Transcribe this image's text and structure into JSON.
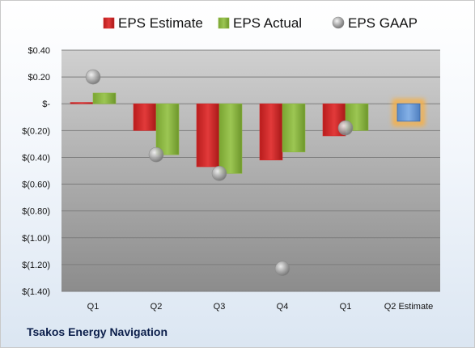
{
  "company": "Tsakos Energy Navigation",
  "chart_data": {
    "type": "bar",
    "categories": [
      "Q1",
      "Q2",
      "Q3",
      "Q4",
      "Q1",
      "Q2 Estimate"
    ],
    "series": [
      {
        "name": "EPS Estimate",
        "kind": "bar",
        "color": "#d42a2a",
        "values": [
          0.01,
          -0.2,
          -0.47,
          -0.42,
          -0.24,
          null
        ]
      },
      {
        "name": "EPS Actual",
        "kind": "bar",
        "color": "#8db73f",
        "values": [
          0.08,
          -0.38,
          -0.52,
          -0.36,
          -0.2,
          null
        ]
      },
      {
        "name": "EPS GAAP",
        "kind": "marker",
        "color": "#a6a6a6",
        "values": [
          0.2,
          -0.38,
          -0.52,
          -1.23,
          -0.18,
          null
        ]
      }
    ],
    "highlight": {
      "category_index": 5,
      "value": -0.13,
      "color": "#6f9fd8",
      "glow": "#f5b04a"
    },
    "ylim": [
      -1.4,
      0.4
    ],
    "yticks": [
      0.4,
      0.2,
      0,
      -0.2,
      -0.4,
      -0.6,
      -0.8,
      -1.0,
      -1.2,
      -1.4
    ],
    "ytick_labels": [
      "$0.40",
      "$0.20",
      "$-",
      "$(0.20)",
      "$(0.40)",
      "$(0.60)",
      "$(0.80)",
      "$(1.00)",
      "$(1.20)",
      "$(1.40)"
    ],
    "grid": true,
    "legend_position": "top"
  }
}
